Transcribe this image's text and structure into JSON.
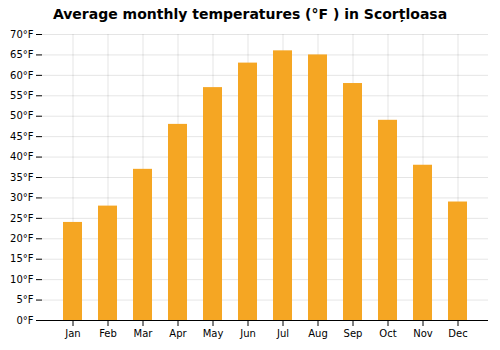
{
  "chart_data": {
    "type": "bar",
    "title": "Average monthly temperatures (°F ) in Scorțloasa",
    "categories": [
      "Jan",
      "Feb",
      "Mar",
      "Apr",
      "May",
      "Jun",
      "Jul",
      "Aug",
      "Sep",
      "Oct",
      "Nov",
      "Dec"
    ],
    "values": [
      24,
      28,
      37,
      48,
      57,
      63,
      66,
      65,
      58,
      49,
      38,
      29
    ],
    "color": "#F5A623",
    "ylim": [
      0,
      70
    ],
    "yticks": [
      {
        "value": 0,
        "label": "0°F"
      },
      {
        "value": 5,
        "label": "5°F"
      },
      {
        "value": 10,
        "label": "10°F"
      },
      {
        "value": 15,
        "label": "15°F"
      },
      {
        "value": 20,
        "label": "20°F"
      },
      {
        "value": 25,
        "label": "25°F"
      },
      {
        "value": 30,
        "label": "30°F"
      },
      {
        "value": 35,
        "label": "35°F"
      },
      {
        "value": 40,
        "label": "40°F"
      },
      {
        "value": 45,
        "label": "45°F"
      },
      {
        "value": 50,
        "label": "50°F"
      },
      {
        "value": 55,
        "label": "55°F"
      },
      {
        "value": 60,
        "label": "60°F"
      },
      {
        "value": 65,
        "label": "65°F"
      },
      {
        "value": 70,
        "label": "70°F"
      }
    ],
    "grid": true
  }
}
